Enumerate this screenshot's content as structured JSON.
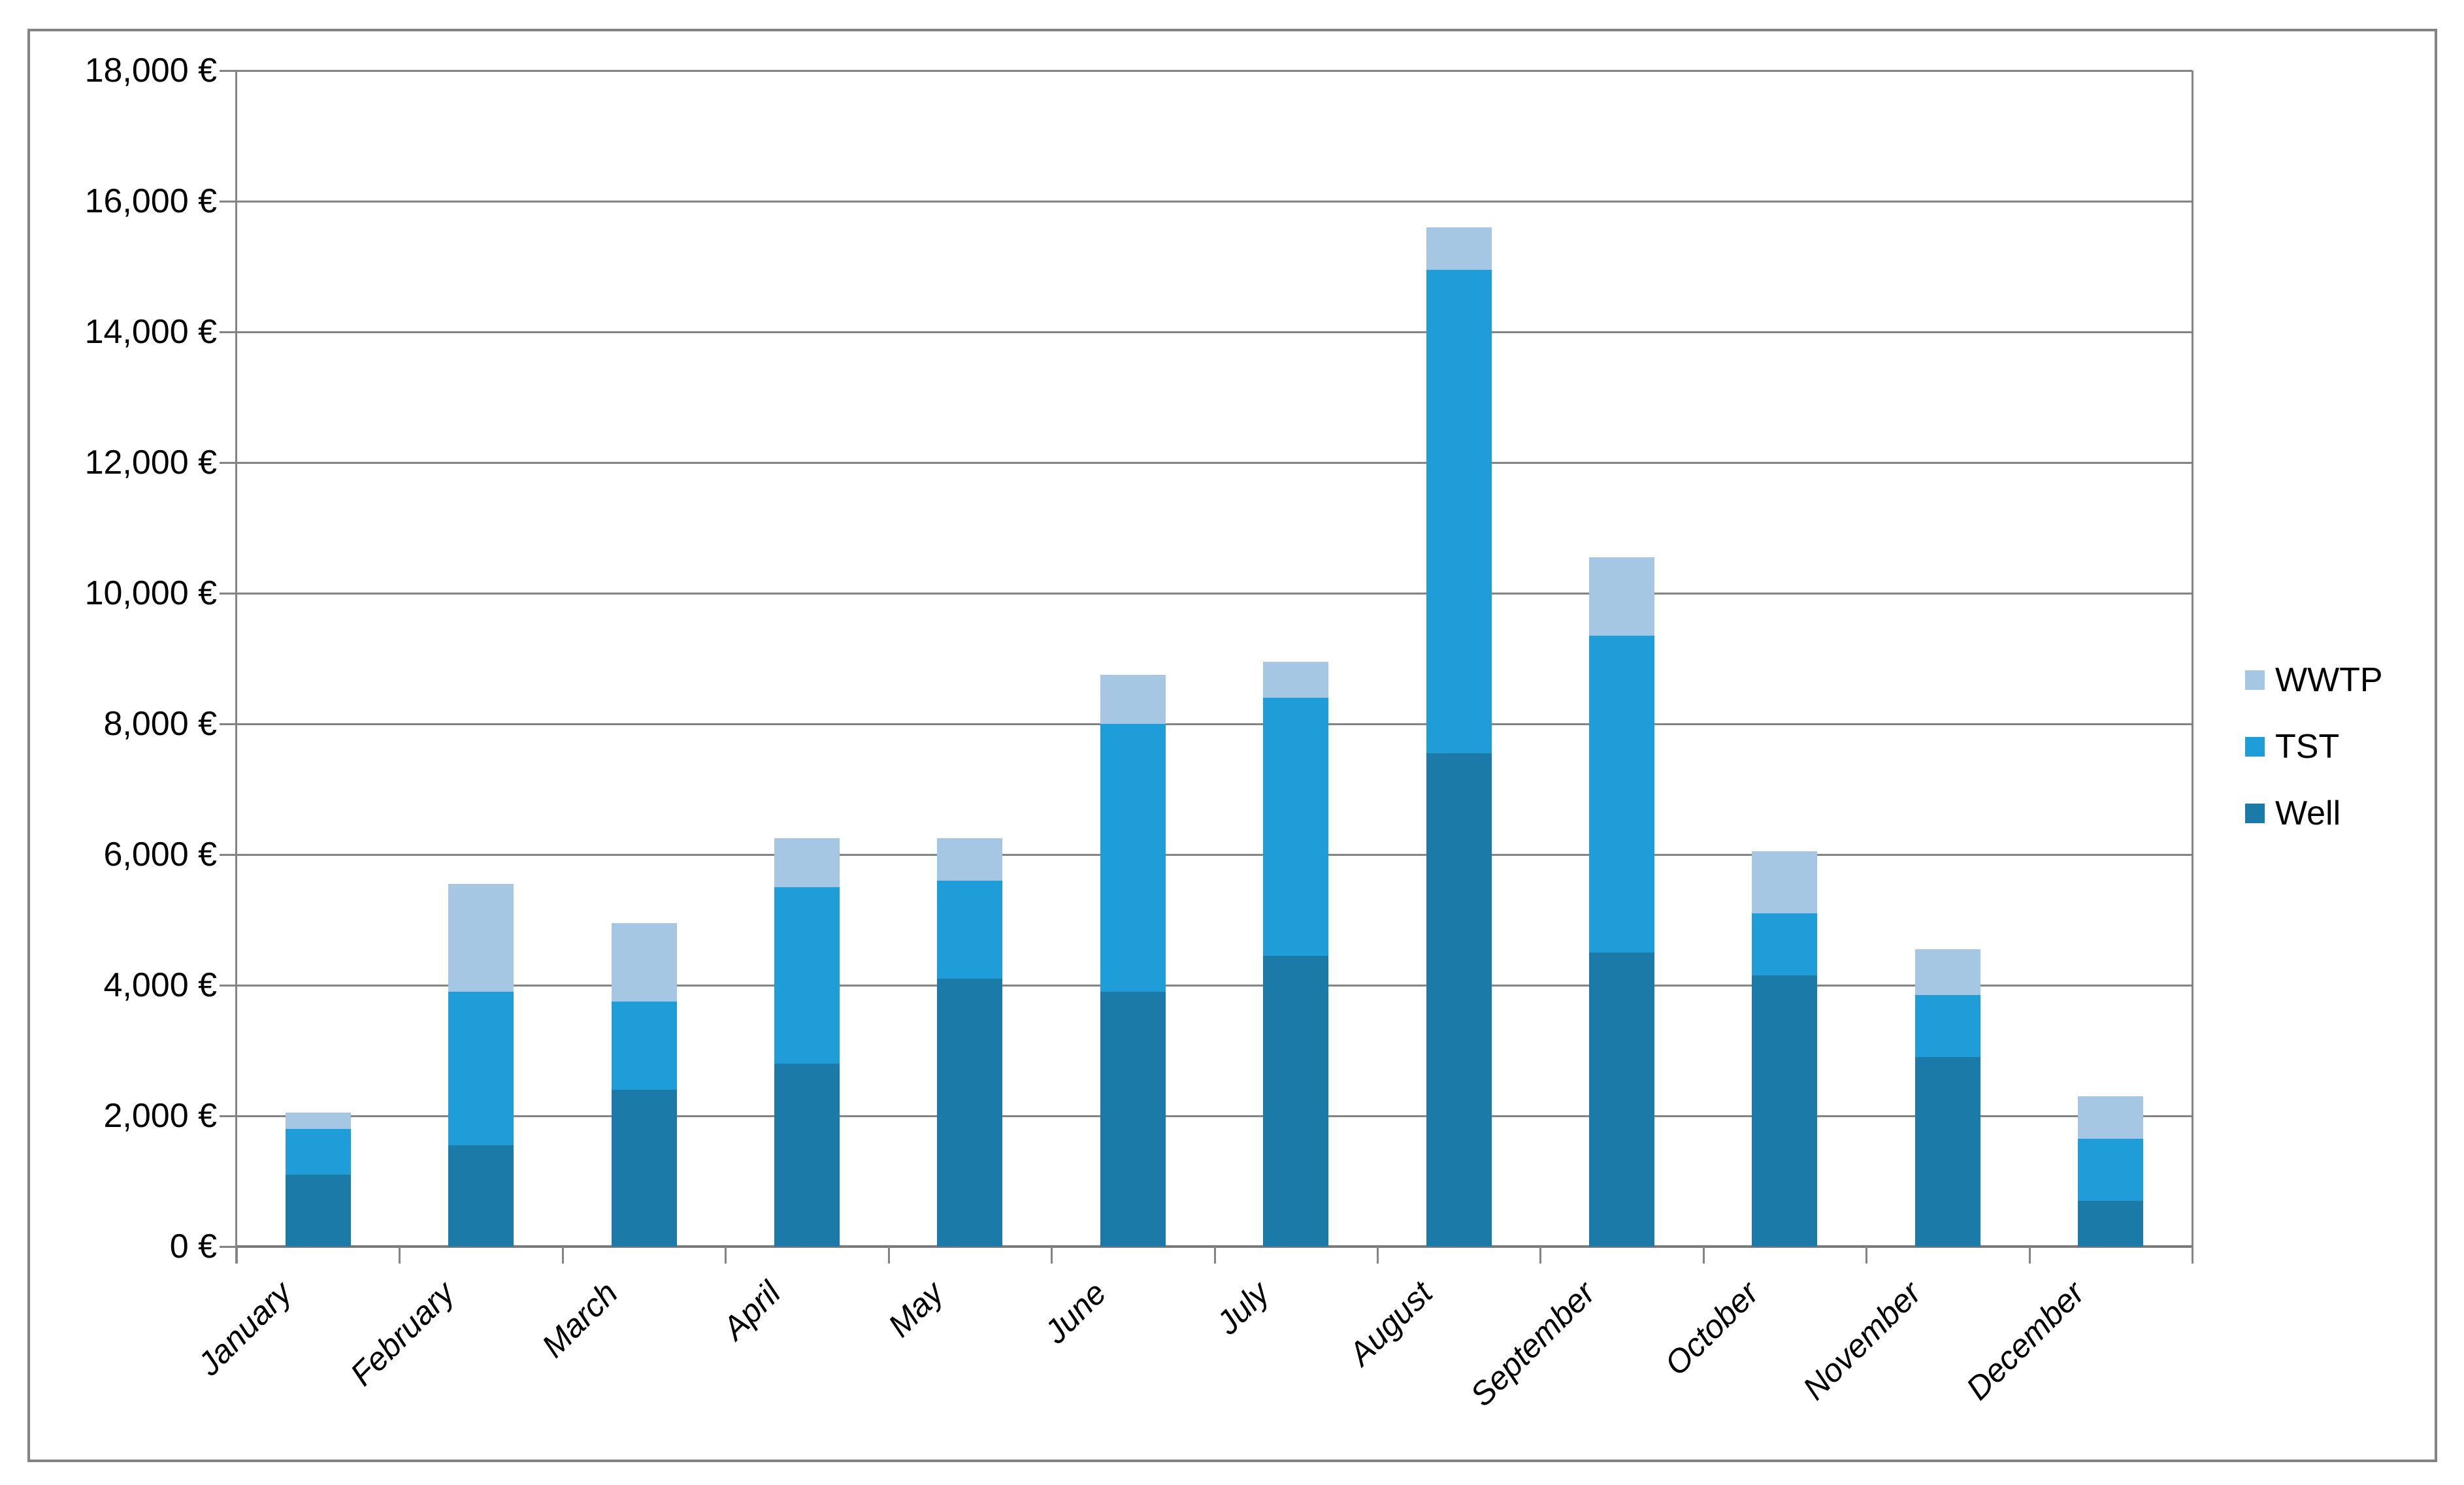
{
  "chart_data": {
    "type": "bar",
    "stacked": true,
    "title": "",
    "xlabel": "",
    "ylabel": "",
    "categories": [
      "January",
      "February",
      "March",
      "April",
      "May",
      "June",
      "July",
      "August",
      "September",
      "October",
      "November",
      "December"
    ],
    "series": [
      {
        "name": "Well",
        "color": "#1b7aa8",
        "values": [
          1100,
          1550,
          2400,
          2800,
          4100,
          3900,
          4450,
          7550,
          4500,
          4150,
          2900,
          700
        ]
      },
      {
        "name": "TST",
        "color": "#1f9dd9",
        "values": [
          700,
          2350,
          1350,
          2700,
          1500,
          4100,
          3950,
          7400,
          4850,
          950,
          950,
          950
        ]
      },
      {
        "name": "WWTP",
        "color": "#a6c7e4",
        "values": [
          250,
          1650,
          1200,
          750,
          650,
          750,
          550,
          650,
          1200,
          950,
          700,
          650
        ]
      }
    ],
    "totals": [
      2050,
      5550,
      4950,
      6250,
      6250,
      8750,
      8950,
      15600,
      10550,
      6050,
      4550,
      2300
    ],
    "ylim": [
      0,
      18000
    ],
    "ytick_step": 2000,
    "ytick_labels": [
      "0 €",
      "2,000 €",
      "4,000 €",
      "6,000 €",
      "8,000 €",
      "10,000 €",
      "12,000 €",
      "14,000 €",
      "16,000 €",
      "18,000 €"
    ],
    "grid": true,
    "legend": {
      "position": "right",
      "entries": [
        "WWTP",
        "TST",
        "Well"
      ]
    }
  },
  "styles": {
    "background": "#ffffff",
    "grid_color": "#848484",
    "axis_color": "#7a7a7a",
    "border_color": "#848484",
    "text_color": "#000000"
  }
}
